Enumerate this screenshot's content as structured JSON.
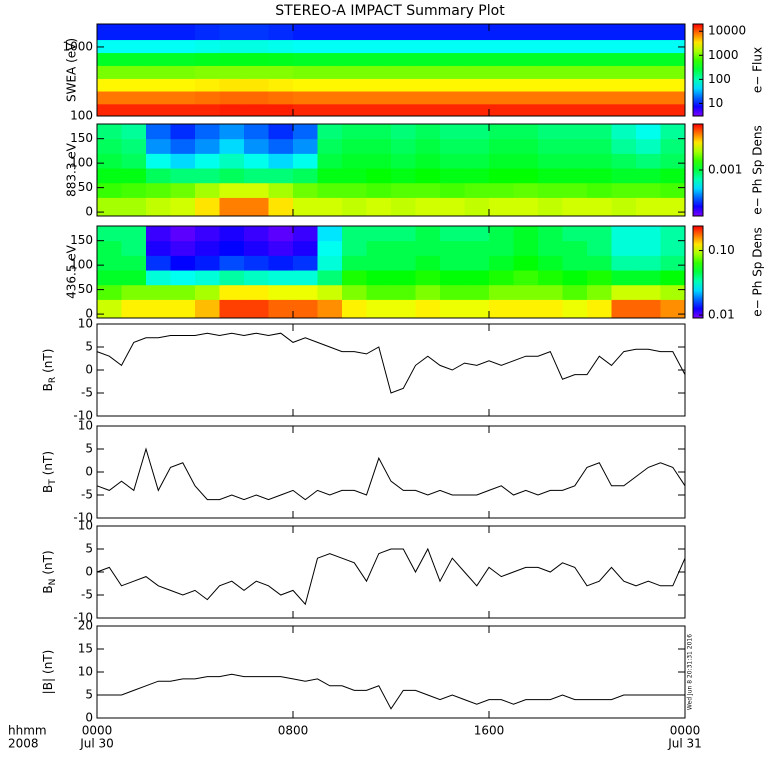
{
  "title": "STEREO-A IMPACT Summary Plot",
  "timestamp": "Wed Jun 8 20:31:31 2016",
  "chart_data": [
    {
      "type": "heatmap",
      "ylabel": "SWEA (eV)",
      "ylog": true,
      "ylim": [
        100,
        2150
      ],
      "yticks": [
        100,
        1000
      ],
      "xlim": [
        0,
        24
      ],
      "x": [
        0,
        1,
        2,
        3,
        4,
        5,
        6,
        7,
        8,
        9,
        10,
        11,
        12,
        13,
        14,
        15,
        16,
        17,
        18,
        19,
        20,
        21,
        22,
        23
      ],
      "y": [
        100,
        150,
        230,
        350,
        540,
        830,
        1280
      ],
      "values": [
        [
          15000,
          15000,
          15000,
          15000,
          15000,
          16000,
          16000,
          16000,
          15000,
          15000,
          15000,
          15000,
          15000,
          15000,
          15000,
          15000,
          15000,
          15000,
          15000,
          15000,
          15000,
          15000,
          15000,
          15000
        ],
        [
          8000,
          8000,
          8000,
          8000,
          8500,
          9000,
          9000,
          8500,
          8000,
          8000,
          8000,
          8000,
          8000,
          8000,
          8000,
          8000,
          8000,
          8000,
          8000,
          8000,
          8000,
          8000,
          8000,
          8000
        ],
        [
          3000,
          3000,
          3000,
          3000,
          3200,
          3400,
          3400,
          3200,
          3000,
          3000,
          3000,
          3000,
          3000,
          3000,
          3000,
          3000,
          3000,
          3000,
          3000,
          3000,
          3000,
          3000,
          3000,
          3000
        ],
        [
          1000,
          1000,
          1000,
          1000,
          1100,
          1100,
          1100,
          1100,
          1000,
          1000,
          1000,
          1000,
          1000,
          1000,
          1000,
          1000,
          1000,
          1000,
          1000,
          1000,
          1000,
          1000,
          1000,
          1000
        ],
        [
          300,
          300,
          300,
          300,
          320,
          330,
          330,
          320,
          300,
          300,
          300,
          300,
          300,
          300,
          300,
          300,
          300,
          300,
          300,
          300,
          300,
          300,
          300,
          300
        ],
        [
          60,
          60,
          60,
          60,
          65,
          70,
          70,
          65,
          60,
          60,
          60,
          60,
          60,
          60,
          60,
          60,
          60,
          60,
          60,
          60,
          60,
          60,
          60,
          60
        ],
        [
          10,
          10,
          10,
          10,
          11,
          12,
          12,
          11,
          10,
          10,
          10,
          10,
          10,
          10,
          10,
          10,
          10,
          10,
          10,
          10,
          10,
          10,
          10,
          10
        ]
      ],
      "zlog": true,
      "zlim": [
        3,
        20000
      ],
      "zticks": [
        10,
        100,
        1000,
        10000
      ],
      "zlabel": "e− Flux"
    },
    {
      "type": "heatmap",
      "ylabel": "883.3 eV",
      "ylim": [
        -8,
        180
      ],
      "yticks": [
        0,
        50,
        100,
        150
      ],
      "xlim": [
        0,
        24
      ],
      "x": [
        0,
        1,
        2,
        3,
        4,
        5,
        6,
        7,
        8,
        9,
        10,
        11,
        12,
        13,
        14,
        15,
        16,
        17,
        18,
        19,
        20,
        21,
        22,
        23
      ],
      "y": [
        0,
        30,
        60,
        90,
        120,
        150
      ],
      "values": [
        [
          0.0025,
          0.0025,
          0.0028,
          0.003,
          0.004,
          0.006,
          0.006,
          0.004,
          0.003,
          0.003,
          0.0028,
          0.003,
          0.0028,
          0.003,
          0.003,
          0.0028,
          0.003,
          0.003,
          0.0028,
          0.003,
          0.003,
          0.0028,
          0.003,
          0.003
        ],
        [
          0.0016,
          0.0017,
          0.0018,
          0.002,
          0.0025,
          0.003,
          0.003,
          0.0025,
          0.002,
          0.0018,
          0.0018,
          0.0017,
          0.0018,
          0.0018,
          0.0017,
          0.0018,
          0.0018,
          0.0019,
          0.0018,
          0.0018,
          0.0017,
          0.0018,
          0.0018,
          0.0017
        ],
        [
          0.0012,
          0.0012,
          0.0009,
          0.0008,
          0.0008,
          0.0009,
          0.0008,
          0.0008,
          0.0009,
          0.0012,
          0.0012,
          0.0013,
          0.0012,
          0.0013,
          0.0012,
          0.0012,
          0.0013,
          0.0013,
          0.0012,
          0.0012,
          0.0012,
          0.0011,
          0.0011,
          0.0012
        ],
        [
          0.001,
          0.0009,
          0.0005,
          0.0004,
          0.0005,
          0.0006,
          0.0005,
          0.0004,
          0.0005,
          0.001,
          0.0011,
          0.0011,
          0.001,
          0.0011,
          0.001,
          0.001,
          0.0011,
          0.0011,
          0.001,
          0.001,
          0.001,
          0.0009,
          0.0008,
          0.0009
        ],
        [
          0.0009,
          0.0008,
          0.0003,
          0.00025,
          0.0003,
          0.0004,
          0.0003,
          0.00025,
          0.0003,
          0.0009,
          0.001,
          0.001,
          0.0009,
          0.001,
          0.0009,
          0.0009,
          0.001,
          0.001,
          0.0009,
          0.0009,
          0.0009,
          0.0007,
          0.0006,
          0.0008
        ],
        [
          0.0008,
          0.0007,
          0.00025,
          0.0002,
          0.00025,
          0.0003,
          0.00025,
          0.0002,
          0.00025,
          0.0008,
          0.0009,
          0.0009,
          0.0008,
          0.0009,
          0.0008,
          0.0008,
          0.0009,
          0.0009,
          0.0008,
          0.0008,
          0.0008,
          0.0006,
          0.0005,
          0.0007
        ]
      ],
      "zlog": true,
      "zlim": [
        0.0001,
        0.01
      ],
      "zticks": [
        0.001
      ],
      "zlabel": "e− Ph Sp Dens"
    },
    {
      "type": "heatmap",
      "ylabel": "436.5 eV",
      "ylim": [
        -8,
        180
      ],
      "yticks": [
        0,
        50,
        100,
        150
      ],
      "xlim": [
        0,
        24
      ],
      "x": [
        0,
        1,
        2,
        3,
        4,
        5,
        6,
        7,
        8,
        9,
        10,
        11,
        12,
        13,
        14,
        15,
        16,
        17,
        18,
        19,
        20,
        21,
        22,
        23
      ],
      "y": [
        0,
        30,
        60,
        90,
        120,
        150
      ],
      "values": [
        [
          0.1,
          0.12,
          0.12,
          0.12,
          0.14,
          0.2,
          0.2,
          0.18,
          0.18,
          0.16,
          0.12,
          0.11,
          0.11,
          0.12,
          0.11,
          0.11,
          0.12,
          0.12,
          0.12,
          0.11,
          0.12,
          0.18,
          0.18,
          0.16
        ],
        [
          0.07,
          0.08,
          0.08,
          0.08,
          0.09,
          0.12,
          0.12,
          0.11,
          0.11,
          0.1,
          0.08,
          0.07,
          0.07,
          0.08,
          0.07,
          0.07,
          0.08,
          0.08,
          0.08,
          0.07,
          0.08,
          0.1,
          0.1,
          0.09
        ],
        [
          0.05,
          0.05,
          0.03,
          0.028,
          0.03,
          0.035,
          0.032,
          0.03,
          0.03,
          0.04,
          0.06,
          0.055,
          0.055,
          0.06,
          0.055,
          0.055,
          0.06,
          0.065,
          0.06,
          0.055,
          0.06,
          0.05,
          0.05,
          0.055
        ],
        [
          0.045,
          0.045,
          0.015,
          0.013,
          0.014,
          0.016,
          0.015,
          0.014,
          0.015,
          0.03,
          0.045,
          0.045,
          0.045,
          0.05,
          0.045,
          0.045,
          0.05,
          0.055,
          0.05,
          0.045,
          0.045,
          0.035,
          0.035,
          0.04
        ],
        [
          0.045,
          0.04,
          0.012,
          0.011,
          0.012,
          0.013,
          0.012,
          0.011,
          0.012,
          0.028,
          0.04,
          0.045,
          0.045,
          0.045,
          0.045,
          0.045,
          0.045,
          0.05,
          0.045,
          0.045,
          0.04,
          0.03,
          0.03,
          0.035
        ],
        [
          0.04,
          0.04,
          0.011,
          0.01,
          0.011,
          0.012,
          0.011,
          0.01,
          0.011,
          0.025,
          0.04,
          0.04,
          0.04,
          0.045,
          0.04,
          0.04,
          0.045,
          0.05,
          0.045,
          0.04,
          0.04,
          0.03,
          0.03,
          0.035
        ]
      ],
      "zlog": true,
      "zlim": [
        0.009,
        0.24
      ],
      "zticks": [
        {
          "value": 0.01,
          "label": "0.01"
        },
        {
          "value": 0.1,
          "label": "0.10"
        }
      ],
      "zlabel": "e− Ph Sp Dens"
    },
    {
      "type": "line",
      "ylabel": "B",
      "ylabel_sub": "R",
      "ylabel_unit": "(nT)",
      "color": "#000000",
      "xlim": [
        0,
        24
      ],
      "ylim": [
        -10,
        10
      ],
      "yticks": [
        -10,
        -5,
        0,
        5,
        10
      ],
      "x": [
        0,
        0.5,
        1,
        1.5,
        2,
        2.5,
        3,
        3.5,
        4,
        4.5,
        5,
        5.5,
        6,
        6.5,
        7,
        7.5,
        8,
        8.5,
        9,
        9.5,
        10,
        10.5,
        11,
        11.5,
        12,
        12.5,
        13,
        13.5,
        14,
        14.5,
        15,
        15.5,
        16,
        16.5,
        17,
        17.5,
        18,
        18.5,
        19,
        19.5,
        20,
        20.5,
        21,
        21.5,
        22,
        22.5,
        23,
        23.5,
        24
      ],
      "values": [
        4,
        3,
        1,
        6,
        7,
        7,
        7.5,
        7.5,
        7.5,
        8,
        7.5,
        8,
        7.5,
        8,
        7.5,
        8,
        6,
        7,
        6,
        5,
        4,
        4,
        3.5,
        5,
        -5,
        -4,
        1,
        3,
        1,
        0,
        1.5,
        1,
        2,
        1,
        2,
        3,
        3,
        4,
        -2,
        -1,
        -1,
        3,
        1,
        4,
        4.5,
        4.5,
        4,
        4,
        -1
      ]
    },
    {
      "type": "line",
      "ylabel": "B",
      "ylabel_sub": "T",
      "ylabel_unit": "(nT)",
      "color": "#000000",
      "xlim": [
        0,
        24
      ],
      "ylim": [
        -10,
        10
      ],
      "yticks": [
        -10,
        -5,
        0,
        5,
        10
      ],
      "x": [
        0,
        0.5,
        1,
        1.5,
        2,
        2.5,
        3,
        3.5,
        4,
        4.5,
        5,
        5.5,
        6,
        6.5,
        7,
        7.5,
        8,
        8.5,
        9,
        9.5,
        10,
        10.5,
        11,
        11.5,
        12,
        12.5,
        13,
        13.5,
        14,
        14.5,
        15,
        15.5,
        16,
        16.5,
        17,
        17.5,
        18,
        18.5,
        19,
        19.5,
        20,
        20.5,
        21,
        21.5,
        22,
        22.5,
        23,
        23.5,
        24
      ],
      "values": [
        -3,
        -4,
        -2,
        -4,
        5,
        -4,
        1,
        2,
        -3,
        -6,
        -6,
        -5,
        -6,
        -5,
        -6,
        -5,
        -4,
        -6,
        -4,
        -5,
        -4,
        -4,
        -5,
        3,
        -2,
        -4,
        -4,
        -5,
        -4,
        -5,
        -5,
        -5,
        -4,
        -3,
        -5,
        -4,
        -5,
        -4,
        -4,
        -3,
        1,
        2,
        -3,
        -3,
        -1,
        1,
        2,
        1,
        -3
      ]
    },
    {
      "type": "line",
      "ylabel": "B",
      "ylabel_sub": "N",
      "ylabel_unit": "(nT)",
      "color": "#000000",
      "xlim": [
        0,
        24
      ],
      "ylim": [
        -10,
        10
      ],
      "yticks": [
        -10,
        -5,
        0,
        5,
        10
      ],
      "x": [
        0,
        0.5,
        1,
        1.5,
        2,
        2.5,
        3,
        3.5,
        4,
        4.5,
        5,
        5.5,
        6,
        6.5,
        7,
        7.5,
        8,
        8.5,
        9,
        9.5,
        10,
        10.5,
        11,
        11.5,
        12,
        12.5,
        13,
        13.5,
        14,
        14.5,
        15,
        15.5,
        16,
        16.5,
        17,
        17.5,
        18,
        18.5,
        19,
        19.5,
        20,
        20.5,
        21,
        21.5,
        22,
        22.5,
        23,
        23.5,
        24
      ],
      "values": [
        0,
        1,
        -3,
        -2,
        -1,
        -3,
        -4,
        -5,
        -4,
        -6,
        -3,
        -2,
        -4,
        -2,
        -3,
        -5,
        -4,
        -7,
        3,
        4,
        3,
        2,
        -2,
        4,
        5,
        5,
        0,
        5,
        -2,
        3,
        0,
        -3,
        1,
        -1,
        0,
        1,
        1,
        0,
        2,
        1,
        -3,
        -2,
        1,
        -2,
        -3,
        -2,
        -3,
        -3,
        3
      ]
    },
    {
      "type": "line",
      "ylabel": "|B|",
      "ylabel_unit": "(nT)",
      "color": "#000000",
      "xlim": [
        0,
        24
      ],
      "ylim": [
        0,
        20
      ],
      "yticks": [
        0,
        5,
        10,
        15,
        20
      ],
      "x": [
        0,
        0.5,
        1,
        1.5,
        2,
        2.5,
        3,
        3.5,
        4,
        4.5,
        5,
        5.5,
        6,
        6.5,
        7,
        7.5,
        8,
        8.5,
        9,
        9.5,
        10,
        10.5,
        11,
        11.5,
        12,
        12.5,
        13,
        13.5,
        14,
        14.5,
        15,
        15.5,
        16,
        16.5,
        17,
        17.5,
        18,
        18.5,
        19,
        19.5,
        20,
        20.5,
        21,
        21.5,
        22,
        22.5,
        23,
        23.5,
        24
      ],
      "values": [
        5,
        5,
        5,
        6,
        7,
        8,
        8,
        8.5,
        8.5,
        9,
        9,
        9.5,
        9,
        9,
        9,
        9,
        8.5,
        8,
        8.5,
        7,
        7,
        6,
        6,
        7,
        2,
        6,
        6,
        5,
        4,
        5,
        4,
        3,
        4,
        4,
        3,
        4,
        4,
        4,
        5,
        4,
        4,
        4,
        4,
        5,
        5,
        5,
        5,
        5,
        5
      ],
      "xticks": [
        {
          "value": 0,
          "label": "0000"
        },
        {
          "value": 8,
          "label": "0800"
        },
        {
          "value": 16,
          "label": "1600"
        },
        {
          "value": 24,
          "label": "0000"
        }
      ],
      "dates": [
        {
          "value": 0,
          "label": "Jul 30"
        },
        {
          "value": 24,
          "label": "Jul 31"
        }
      ],
      "xlabel": "hhmm",
      "year": "2008"
    }
  ]
}
